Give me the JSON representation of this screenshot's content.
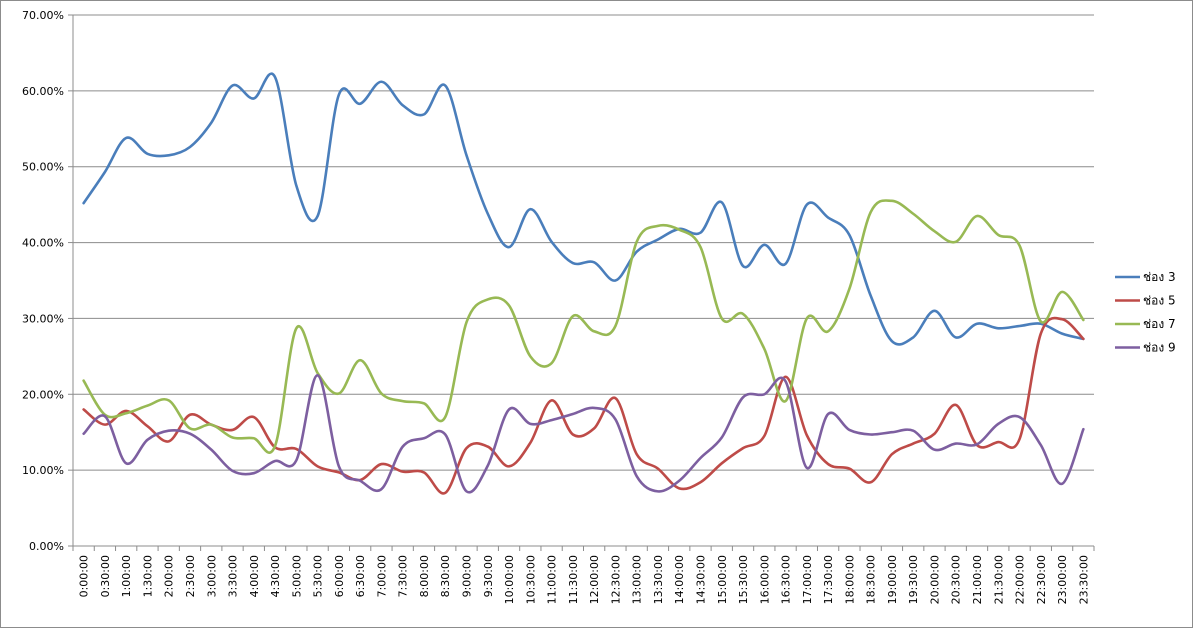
{
  "chart_data": {
    "type": "line",
    "title": "",
    "xlabel": "",
    "ylabel": "",
    "ylim": [
      0,
      70
    ],
    "y_ticks": [
      "0.00%",
      "10.00%",
      "20.00%",
      "30.00%",
      "40.00%",
      "50.00%",
      "60.00%",
      "70.00%"
    ],
    "grid": "horizontal",
    "legend_position": "right",
    "x": [
      "0:00:00",
      "0:30:00",
      "1:00:00",
      "1:30:00",
      "2:00:00",
      "2:30:00",
      "3:00:00",
      "3:30:00",
      "4:00:00",
      "4:30:00",
      "5:00:00",
      "5:30:00",
      "6:00:00",
      "6:30:00",
      "7:00:00",
      "7:30:00",
      "8:00:00",
      "8:30:00",
      "9:00:00",
      "9:30:00",
      "10:00:00",
      "10:30:00",
      "11:00:00",
      "11:30:00",
      "12:00:00",
      "12:30:00",
      "13:00:00",
      "13:30:00",
      "14:00:00",
      "14:30:00",
      "15:00:00",
      "15:30:00",
      "16:00:00",
      "16:30:00",
      "17:00:00",
      "17:30:00",
      "18:00:00",
      "18:30:00",
      "19:00:00",
      "19:30:00",
      "20:00:00",
      "20:30:00",
      "21:00:00",
      "21:30:00",
      "22:00:00",
      "22:30:00",
      "23:00:00",
      "23:30:00"
    ],
    "series": [
      {
        "name": "ช่อง 3",
        "color": "#4a7ebb",
        "values": [
          45.2,
          49.3,
          53.8,
          51.7,
          51.5,
          52.6,
          55.8,
          60.7,
          59.0,
          61.8,
          47.5,
          43.5,
          59.5,
          58.3,
          61.2,
          58.1,
          56.9,
          60.7,
          51.5,
          43.8,
          39.4,
          44.4,
          40.1,
          37.3,
          37.4,
          35.0,
          38.8,
          40.4,
          41.8,
          41.3,
          45.3,
          36.9,
          39.7,
          37.2,
          45.0,
          43.3,
          41.0,
          33.0,
          27.0,
          27.5,
          31.0,
          27.5,
          29.3,
          28.7,
          29.0,
          29.3,
          28.0,
          27.3
        ]
      },
      {
        "name": "ช่อง 5",
        "color": "#be4b48",
        "values": [
          18.0,
          16.0,
          17.8,
          15.8,
          13.8,
          17.3,
          16.0,
          15.3,
          17.0,
          13.0,
          12.8,
          10.5,
          9.7,
          8.7,
          10.8,
          9.8,
          9.7,
          7.0,
          12.9,
          13.1,
          10.5,
          13.6,
          19.2,
          14.7,
          15.5,
          19.5,
          12.1,
          10.2,
          7.6,
          8.4,
          10.9,
          12.9,
          14.5,
          22.3,
          14.6,
          10.8,
          10.2,
          8.4,
          12.1,
          13.5,
          14.8,
          18.6,
          13.3,
          13.7,
          14.1,
          28.0,
          29.9,
          27.3
        ]
      },
      {
        "name": "ช่อง 7",
        "color": "#98b954",
        "values": [
          21.8,
          17.3,
          17.5,
          18.5,
          19.2,
          15.5,
          16.0,
          14.3,
          14.2,
          13.2,
          28.7,
          22.8,
          20.1,
          24.5,
          20.1,
          19.1,
          18.8,
          17.0,
          29.5,
          32.5,
          31.7,
          25.0,
          24.1,
          30.3,
          28.3,
          29.0,
          40.1,
          42.2,
          41.7,
          39.4,
          30.0,
          30.6,
          26.0,
          19.1,
          30.0,
          28.3,
          33.9,
          44.0,
          45.5,
          43.8,
          41.5,
          40.1,
          43.5,
          41.0,
          39.6,
          29.6,
          33.5,
          29.8
        ]
      },
      {
        "name": "ช่อง 9",
        "color": "#7d5fa0",
        "values": [
          14.8,
          17.1,
          10.9,
          14.0,
          15.2,
          14.8,
          12.7,
          9.9,
          9.6,
          11.2,
          11.3,
          22.5,
          10.5,
          8.6,
          7.5,
          13.1,
          14.2,
          14.7,
          7.2,
          10.6,
          18.0,
          16.1,
          16.6,
          17.4,
          18.2,
          16.7,
          9.2,
          7.2,
          8.6,
          11.6,
          14.3,
          19.6,
          20.0,
          21.7,
          10.3,
          17.4,
          15.3,
          14.7,
          15.0,
          15.2,
          12.7,
          13.5,
          13.4,
          16.1,
          17.0,
          13.3,
          8.2,
          15.4
        ]
      }
    ]
  }
}
